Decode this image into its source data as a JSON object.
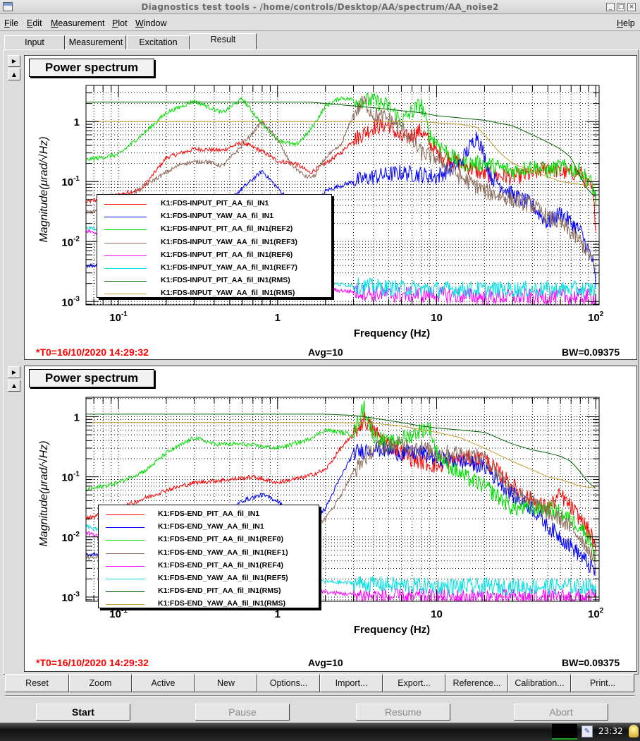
{
  "window": {
    "title": "Diagnostics test tools - /home/controls/Desktop/AA/spectrum/AA_noise2",
    "buttons": [
      "minimize-icon",
      "maximize-icon",
      "close-icon"
    ]
  },
  "menubar": {
    "items": [
      {
        "label": "File",
        "mnemonic": "F",
        "rest": "ile"
      },
      {
        "label": "Edit",
        "mnemonic": "E",
        "rest": "dit"
      },
      {
        "label": "Measurement",
        "mnemonic": "M",
        "rest": "easurement"
      },
      {
        "label": "Plot",
        "mnemonic": "P",
        "rest": "lot"
      },
      {
        "label": "Window",
        "mnemonic": "W",
        "rest": "indow"
      }
    ],
    "help": {
      "label": "Help",
      "mnemonic": "H",
      "rest": "elp"
    }
  },
  "tabs": [
    {
      "label": "Input",
      "active": false
    },
    {
      "label": "Measurement",
      "active": false
    },
    {
      "label": "Excitation",
      "active": false
    },
    {
      "label": "Result",
      "active": true
    }
  ],
  "pads": [
    {
      "title": "Power spectrum",
      "t0": "*T0=16/10/2020 14:29:32",
      "avg": "Avg=10",
      "bw": "BW=0.09375"
    },
    {
      "title": "Power spectrum",
      "t0": "*T0=16/10/2020 14:29:32",
      "avg": "Avg=10",
      "bw": "BW=0.09375"
    }
  ],
  "chart_data": [
    {
      "type": "line",
      "title": "Power spectrum",
      "xlabel": "Frequency (Hz)",
      "ylabel": "Magnitude(μrad/√Hz)",
      "xscale": "log",
      "yscale": "log",
      "xlim": [
        0.0625,
        105
      ],
      "ylim": [
        0.00088,
        4.0
      ],
      "xticks": [
        {
          "v": 0.1,
          "b": "10",
          "e": "-1"
        },
        {
          "v": 1,
          "b": "1",
          "e": ""
        },
        {
          "v": 10,
          "b": "10",
          "e": ""
        },
        {
          "v": 100,
          "b": "10",
          "e": "2"
        }
      ],
      "yticks": [
        {
          "v": 1,
          "b": "1",
          "e": ""
        },
        {
          "v": 0.1,
          "b": "10",
          "e": "-1"
        },
        {
          "v": 0.01,
          "b": "10",
          "e": "-2"
        },
        {
          "v": 0.001,
          "b": "10",
          "e": "-3"
        }
      ],
      "grid": true,
      "legend_position": "bottom-left",
      "series": [
        {
          "name": "K1:FDS-INPUT_PIT_AA_fil_IN1",
          "color": "#ff0000",
          "noisy": true,
          "x": [
            0.0625,
            0.1,
            0.14,
            0.2,
            0.3,
            0.45,
            0.6,
            0.8,
            1.0,
            1.3,
            1.6,
            2.0,
            2.5,
            3.0,
            4.0,
            5.0,
            6.0,
            8.0,
            10,
            14,
            20,
            30,
            40,
            50,
            60,
            80,
            95,
            100
          ],
          "y": [
            0.045,
            0.06,
            0.075,
            0.25,
            0.35,
            0.33,
            0.45,
            0.32,
            0.22,
            0.2,
            0.14,
            0.2,
            0.3,
            0.5,
            0.8,
            0.9,
            0.5,
            0.7,
            0.3,
            0.2,
            0.13,
            0.12,
            0.13,
            0.18,
            0.14,
            0.14,
            0.07,
            0.02
          ]
        },
        {
          "name": "K1:FDS-INPUT_YAW_AA_fil_IN1",
          "color": "#0000ff",
          "noisy": true,
          "x": [
            0.0625,
            0.2,
            0.5,
            0.8,
            1.1,
            1.5,
            2.0,
            3.0,
            4.0,
            6.0,
            8.0,
            10,
            14,
            18,
            22,
            30,
            40,
            50,
            60,
            80,
            95,
            100
          ],
          "y": [
            0.004,
            0.004,
            0.05,
            0.15,
            0.06,
            0.02,
            0.07,
            0.1,
            0.12,
            0.14,
            0.13,
            0.12,
            0.2,
            0.6,
            0.12,
            0.06,
            0.04,
            0.02,
            0.03,
            0.015,
            0.005,
            0.002
          ]
        },
        {
          "name": "K1:FDS-INPUT_PIT_AA_fil_IN1(REF2)",
          "color": "#00e000",
          "noisy": true,
          "x": [
            0.0625,
            0.1,
            0.15,
            0.2,
            0.3,
            0.45,
            0.6,
            0.8,
            1.0,
            1.3,
            1.6,
            2.0,
            2.5,
            3.0,
            4.0,
            5.0,
            6.0,
            8.0,
            9.0,
            10,
            14,
            20,
            30,
            40,
            50,
            60,
            80,
            95,
            100
          ],
          "y": [
            0.23,
            0.28,
            0.7,
            1.4,
            2.2,
            1.4,
            2.4,
            0.9,
            0.5,
            0.4,
            0.7,
            1.8,
            2.5,
            2.3,
            2.2,
            1.8,
            1.0,
            2.0,
            0.6,
            0.45,
            0.2,
            0.2,
            0.15,
            0.18,
            0.15,
            0.18,
            0.15,
            0.09,
            0.05
          ]
        },
        {
          "name": "K1:FDS-INPUT_YAW_AA_fil_IN1(REF3)",
          "color": "#8b6b5a",
          "noisy": true,
          "x": [
            0.0625,
            0.1,
            0.15,
            0.25,
            0.35,
            0.45,
            0.6,
            0.8,
            1.0,
            1.2,
            1.5,
            1.7,
            2.0,
            2.5,
            3.0,
            3.5,
            4.0,
            5.0,
            6.0,
            8.0,
            10,
            14,
            20,
            30,
            40,
            50,
            60,
            80,
            95,
            100
          ],
          "y": [
            0.03,
            0.04,
            0.09,
            0.2,
            0.22,
            0.18,
            0.4,
            1.0,
            0.5,
            0.2,
            0.12,
            0.12,
            0.25,
            0.4,
            1.3,
            2.2,
            1.3,
            1.1,
            0.8,
            0.3,
            0.25,
            0.12,
            0.07,
            0.05,
            0.04,
            0.025,
            0.02,
            0.01,
            0.005,
            0.003
          ]
        },
        {
          "name": "K1:FDS-INPUT_PIT_AA_fil_IN1(REF6)",
          "color": "#ff00ff",
          "noisy": true,
          "x": [
            0.0625,
            0.1,
            0.3,
            1.0,
            2.0,
            5.0,
            10,
            20,
            40,
            60,
            100
          ],
          "y": [
            0.015,
            0.012,
            0.004,
            0.0022,
            0.0016,
            0.0013,
            0.0013,
            0.0012,
            0.0012,
            0.0012,
            0.0012
          ]
        },
        {
          "name": "K1:FDS-INPUT_YAW_AA_fil_IN1(REF7)",
          "color": "#00e0e0",
          "noisy": true,
          "x": [
            0.0625,
            0.1,
            0.3,
            1.0,
            2.0,
            5.0,
            10,
            20,
            40,
            60,
            100
          ],
          "y": [
            0.017,
            0.013,
            0.005,
            0.0025,
            0.002,
            0.0017,
            0.0016,
            0.0016,
            0.0016,
            0.0016,
            0.0016
          ]
        },
        {
          "name": "K1:FDS-INPUT_PIT_AA_fil_IN1(RMS)",
          "color": "#006400",
          "noisy": false,
          "x": [
            0.0625,
            1.6,
            2.0,
            4.0,
            8.0,
            10,
            20,
            30,
            40,
            50,
            60,
            70,
            80,
            90,
            100
          ],
          "y": [
            2.1,
            2.1,
            2.0,
            1.7,
            1.4,
            1.25,
            1.05,
            0.85,
            0.6,
            0.45,
            0.35,
            0.25,
            0.12,
            0.07,
            0.055
          ]
        },
        {
          "name": "K1:FDS-INPUT_YAW_AA_fil_IN1(RMS)",
          "color": "#c0a030",
          "noisy": false,
          "x": [
            0.0625,
            8.0,
            10,
            14,
            18,
            20,
            25,
            30,
            40,
            50,
            60,
            80,
            100
          ],
          "y": [
            1.0,
            1.0,
            0.95,
            0.9,
            0.8,
            0.6,
            0.3,
            0.2,
            0.15,
            0.12,
            0.1,
            0.09,
            0.085
          ]
        }
      ]
    },
    {
      "type": "line",
      "title": "Power spectrum",
      "xlabel": "Frequency (Hz)",
      "ylabel": "Magnitude(μrad/√Hz)",
      "xscale": "log",
      "yscale": "log",
      "xlim": [
        0.0625,
        105
      ],
      "ylim": [
        0.00085,
        2.1
      ],
      "xticks": [
        {
          "v": 0.1,
          "b": "10",
          "e": "-1"
        },
        {
          "v": 1,
          "b": "1",
          "e": ""
        },
        {
          "v": 10,
          "b": "10",
          "e": ""
        },
        {
          "v": 100,
          "b": "10",
          "e": "2"
        }
      ],
      "yticks": [
        {
          "v": 1,
          "b": "1",
          "e": ""
        },
        {
          "v": 0.1,
          "b": "10",
          "e": "-1"
        },
        {
          "v": 0.01,
          "b": "10",
          "e": "-2"
        },
        {
          "v": 0.001,
          "b": "10",
          "e": "-3"
        }
      ],
      "grid": true,
      "legend_position": "bottom-left",
      "series": [
        {
          "name": "K1:FDS-END_PIT_AA_fil_IN1",
          "color": "#ff0000",
          "noisy": true,
          "x": [
            0.0625,
            0.1,
            0.2,
            0.3,
            0.5,
            0.7,
            1.0,
            1.5,
            2.0,
            2.5,
            3.0,
            3.5,
            4.0,
            5.0,
            7.0,
            10,
            14,
            20,
            30,
            40,
            50,
            60,
            80,
            95,
            100
          ],
          "y": [
            0.02,
            0.03,
            0.06,
            0.08,
            0.09,
            0.1,
            0.08,
            0.1,
            0.13,
            0.3,
            0.5,
            0.9,
            0.6,
            0.35,
            0.2,
            0.15,
            0.2,
            0.2,
            0.07,
            0.04,
            0.03,
            0.05,
            0.02,
            0.01,
            0.005
          ]
        },
        {
          "name": "K1:FDS-END_YAW_AA_fil_IN1",
          "color": "#0000ff",
          "noisy": true,
          "x": [
            0.0625,
            0.3,
            0.6,
            0.8,
            1.0,
            1.3,
            1.6,
            2.0,
            2.5,
            3.0,
            4.0,
            6.0,
            8.0,
            10,
            14,
            20,
            30,
            40,
            50,
            60,
            80,
            95,
            100
          ],
          "y": [
            0.005,
            0.008,
            0.04,
            0.05,
            0.04,
            0.02,
            0.015,
            0.03,
            0.1,
            0.25,
            0.3,
            0.25,
            0.25,
            0.2,
            0.18,
            0.15,
            0.05,
            0.03,
            0.015,
            0.01,
            0.005,
            0.003,
            0.0025
          ]
        },
        {
          "name": "K1:FDS-END_PIT_AA_fil_IN1(REF0)",
          "color": "#00e000",
          "noisy": true,
          "x": [
            0.0625,
            0.1,
            0.15,
            0.2,
            0.3,
            0.4,
            0.6,
            1.0,
            1.5,
            2.0,
            2.5,
            3.0,
            3.5,
            4.0,
            5.0,
            7.0,
            9.0,
            10,
            12,
            15,
            20,
            30,
            40,
            50,
            60,
            80,
            95,
            100
          ],
          "y": [
            0.06,
            0.08,
            0.13,
            0.25,
            0.45,
            0.35,
            0.35,
            0.3,
            0.4,
            0.6,
            0.55,
            0.5,
            1.5,
            0.5,
            0.35,
            0.5,
            0.7,
            0.25,
            0.15,
            0.1,
            0.07,
            0.03,
            0.03,
            0.03,
            0.025,
            0.015,
            0.008,
            0.004
          ]
        },
        {
          "name": "K1:FDS-END_YAW_AA_fil_IN1(REF1)",
          "color": "#8b6b5a",
          "noisy": true,
          "x": [
            0.0625,
            0.3,
            0.6,
            1.0,
            1.5,
            2.0,
            2.5,
            3.0,
            4.0,
            6.0,
            8.0,
            10,
            14,
            20,
            30,
            40,
            50,
            60,
            80,
            95,
            100
          ],
          "y": [
            0.0045,
            0.006,
            0.015,
            0.015,
            0.012,
            0.02,
            0.05,
            0.12,
            0.3,
            0.35,
            0.3,
            0.25,
            0.25,
            0.2,
            0.06,
            0.04,
            0.025,
            0.02,
            0.01,
            0.005,
            0.003
          ]
        },
        {
          "name": "K1:FDS-END_PIT_AA_fil_IN1(REF4)",
          "color": "#ff00ff",
          "noisy": true,
          "x": [
            0.0625,
            0.1,
            0.3,
            1.0,
            2.0,
            5.0,
            10,
            20,
            40,
            60,
            100
          ],
          "y": [
            0.012,
            0.008,
            0.0035,
            0.0018,
            0.0012,
            0.001,
            0.001,
            0.001,
            0.001,
            0.001,
            0.001
          ]
        },
        {
          "name": "K1:FDS-END_YAW_AA_fil_IN1(REF5)",
          "color": "#00e0e0",
          "noisy": true,
          "x": [
            0.0625,
            0.1,
            0.3,
            1.0,
            2.0,
            5.0,
            10,
            20,
            40,
            60,
            100
          ],
          "y": [
            0.015,
            0.01,
            0.005,
            0.0025,
            0.0018,
            0.0016,
            0.0015,
            0.0015,
            0.0015,
            0.0015,
            0.0015
          ]
        },
        {
          "name": "K1:FDS-END_PIT_AA_fil_IN1(RMS)",
          "color": "#006400",
          "noisy": false,
          "x": [
            0.0625,
            2.0,
            3.0,
            4.0,
            6.0,
            8.0,
            10,
            14,
            20,
            30,
            40,
            50,
            60,
            70,
            80,
            90,
            100
          ],
          "y": [
            1.1,
            1.1,
            1.05,
            0.95,
            0.8,
            0.7,
            0.65,
            0.6,
            0.55,
            0.35,
            0.28,
            0.25,
            0.22,
            0.18,
            0.12,
            0.08,
            0.065
          ]
        },
        {
          "name": "K1:FDS-END_YAW_AA_fil_IN1(RMS)",
          "color": "#c0a030",
          "noisy": false,
          "x": [
            0.0625,
            2.0,
            4.0,
            6.0,
            10,
            14,
            20,
            30,
            40,
            50,
            60,
            80,
            100
          ],
          "y": [
            0.8,
            0.8,
            0.78,
            0.7,
            0.55,
            0.45,
            0.3,
            0.18,
            0.13,
            0.1,
            0.09,
            0.07,
            0.065
          ]
        }
      ]
    }
  ],
  "toolbar": {
    "buttons": [
      "Reset",
      "Zoom",
      "Active",
      "New",
      "Options...",
      "Import...",
      "Export...",
      "Reference...",
      "Calibration...",
      "Print..."
    ]
  },
  "controls": {
    "start": "Start",
    "pause": "Pause",
    "resume": "Resume",
    "abort": "Abort"
  },
  "taskbar": {
    "clock": "23:32"
  }
}
